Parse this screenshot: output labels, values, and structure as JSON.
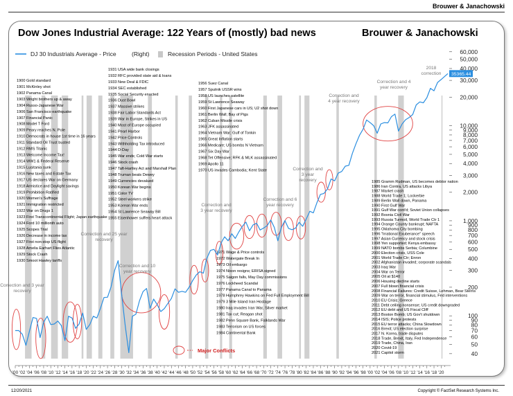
{
  "header": {
    "brand": "Brouwer & Janachowski",
    "title": "Dow Jones Industrial Average: 122 Years of (mostly) bad news",
    "brand2": "Brouwer & Janachowski"
  },
  "footer": {
    "date": "12/20/2021",
    "copyright": "Copyright © FactSet Research Systems Inc."
  },
  "colors": {
    "line": "#2a8ee0",
    "recession": "#c8c8c8",
    "ellipse": "#e04040",
    "label_bg": "#2a8ee0"
  },
  "chart_data": {
    "type": "line",
    "legend": {
      "series": "DJ 30 Industrials Average - Price",
      "axis_note": "(Right)",
      "recession": "Recession Periods - United States"
    },
    "last_value_label": "35365.44",
    "y_scale": "log",
    "y_ticks": [
      40,
      50,
      60,
      70,
      80,
      90,
      100,
      200,
      300,
      400,
      500,
      600,
      700,
      800,
      900,
      1000,
      2000,
      3000,
      4000,
      5000,
      6000,
      7000,
      8000,
      9000,
      10000,
      20000,
      30000,
      40000,
      50000,
      60000
    ],
    "y_tick_labels": [
      "40",
      "50",
      "60",
      "70",
      "80",
      "90",
      "100",
      "200",
      "300",
      "400",
      "500",
      "600",
      "700",
      "800",
      "900",
      "1,000",
      "2,000",
      "3,000",
      "4,000",
      "5,000",
      "6,000",
      "7,000",
      "8,000",
      "9,000",
      "10,000",
      "20,000",
      "30,000",
      "40,000",
      "50,000",
      "60,000"
    ],
    "x_tick_labels": [
      "'00",
      "'02",
      "'04",
      "'06",
      "'08",
      "'10",
      "'12",
      "'14",
      "'16",
      "'18",
      "'20",
      "'22",
      "'24",
      "'26",
      "'28",
      "'30",
      "'32",
      "'34",
      "'36",
      "'38",
      "'40",
      "'42",
      "'44",
      "'46",
      "'48",
      "'50",
      "'52",
      "'54",
      "'56",
      "'58",
      "'60",
      "'62",
      "'64",
      "'66",
      "'68",
      "'70",
      "'72",
      "'74",
      "'76",
      "'78",
      "'80",
      "'82",
      "'84",
      "'86",
      "'88",
      "'90",
      "'92",
      "'94",
      "'96",
      "'98",
      "'00",
      "'02",
      "'04",
      "'06",
      "'08",
      "'10",
      "'12",
      "'14",
      "'16",
      "'18",
      "'20"
    ],
    "x_range": [
      1900,
      2021.9
    ],
    "y_range": [
      30,
      65000
    ],
    "series": [
      {
        "name": "DJ 30 Industrials Average - Price",
        "x": [
          1900,
          1901,
          1902,
          1903,
          1904,
          1905,
          1906,
          1907,
          1908,
          1909,
          1910,
          1911,
          1912,
          1913,
          1914,
          1915,
          1916,
          1917,
          1918,
          1919,
          1920,
          1921,
          1922,
          1923,
          1924,
          1925,
          1926,
          1927,
          1928,
          1929,
          1930,
          1931,
          1932,
          1933,
          1934,
          1935,
          1936,
          1937,
          1938,
          1939,
          1940,
          1941,
          1942,
          1943,
          1944,
          1945,
          1946,
          1947,
          1948,
          1949,
          1950,
          1951,
          1952,
          1953,
          1954,
          1955,
          1956,
          1957,
          1958,
          1959,
          1960,
          1961,
          1962,
          1963,
          1964,
          1965,
          1966,
          1967,
          1968,
          1969,
          1970,
          1971,
          1972,
          1973,
          1974,
          1975,
          1976,
          1977,
          1978,
          1979,
          1980,
          1981,
          1982,
          1983,
          1984,
          1985,
          1986,
          1987,
          1988,
          1989,
          1990,
          1991,
          1992,
          1993,
          1994,
          1995,
          1996,
          1997,
          1998,
          1999,
          2000,
          2001,
          2002,
          2003,
          2004,
          2005,
          2006,
          2007,
          2008,
          2009,
          2010,
          2011,
          2012,
          2013,
          2014,
          2015,
          2016,
          2017,
          2018,
          2019,
          2020,
          2021.9
        ],
        "values": [
          70,
          70,
          64,
          49,
          69,
          96,
          94,
          59,
          86,
          99,
          81,
          82,
          88,
          79,
          55,
          99,
          95,
          74,
          82,
          107,
          72,
          81,
          99,
          95,
          120,
          156,
          157,
          202,
          300,
          381,
          165,
          78,
          41,
          99,
          104,
          144,
          180,
          194,
          120,
          150,
          131,
          111,
          119,
          135,
          152,
          192,
          177,
          181,
          177,
          200,
          235,
          269,
          291,
          281,
          404,
          488,
          500,
          436,
          584,
          679,
          616,
          731,
          652,
          763,
          874,
          969,
          786,
          905,
          943,
          800,
          839,
          890,
          1020,
          851,
          616,
          852,
          1005,
          831,
          805,
          839,
          964,
          875,
          1047,
          1259,
          1212,
          1547,
          1896,
          1939,
          2169,
          2753,
          2634,
          3169,
          3301,
          3754,
          3834,
          5117,
          6448,
          7908,
          9181,
          11497,
          10787,
          10022,
          8342,
          10454,
          10783,
          10718,
          12463,
          13265,
          8776,
          10428,
          11578,
          12218,
          13104,
          16577,
          17823,
          17425,
          19763,
          24719,
          23327,
          28538,
          30606,
          35365
        ]
      }
    ],
    "recessions": [
      [
        1902.75,
        1904.6
      ],
      [
        1907.4,
        1908.45
      ],
      [
        1910.1,
        1912
      ],
      [
        1913.1,
        1914.9
      ],
      [
        1918.7,
        1919.2
      ],
      [
        1920.1,
        1921.6
      ],
      [
        1923.4,
        1924.55
      ],
      [
        1926.8,
        1927.9
      ],
      [
        1929.6,
        1933.2
      ],
      [
        1937.4,
        1938.5
      ],
      [
        1945.1,
        1945.8
      ],
      [
        1948.9,
        1949.8
      ],
      [
        1953.5,
        1954.4
      ],
      [
        1957.7,
        1958.3
      ],
      [
        1960.3,
        1961.1
      ],
      [
        1969.9,
        1970.9
      ],
      [
        1973.9,
        1975.2
      ],
      [
        1980,
        1980.5
      ],
      [
        1981.5,
        1982.9
      ],
      [
        1990.5,
        1991.2
      ],
      [
        2001.2,
        2001.9
      ],
      [
        2007.9,
        2009.5
      ],
      [
        2020.1,
        2020.3
      ]
    ],
    "annotations": [
      {
        "label": "Correction and 3 year recovery",
        "lines": [
          "Correction and 3 year",
          "recovery"
        ]
      },
      {
        "label": "Correction and 25 year recovery",
        "lines": [
          "Correction and 25 year",
          "recovery"
        ]
      },
      {
        "label": "Correction and 10 year recovery",
        "lines": [
          "Correction and 10",
          "year recovery"
        ]
      },
      {
        "label": "Correction and 3 year recovery (1962)",
        "lines": [
          "Correction and",
          "3 year recovery"
        ]
      },
      {
        "label": "Correction and 6 year recovery",
        "lines": [
          "Correction and 6",
          "year recovery"
        ]
      },
      {
        "label": "Correction and 3 year recovery (1987)",
        "lines": [
          "Correction and",
          "3 year",
          "recovery"
        ]
      },
      {
        "label": "Correction and 4 year recovery (2000)",
        "lines": [
          "Correction and",
          "4 year recovery"
        ]
      },
      {
        "label": "Correction and 4 year recovery (2007)",
        "lines": [
          "Correction and 4",
          "year recovery"
        ]
      },
      {
        "label": "2018 correction",
        "lines": [
          "2018",
          "correction"
        ]
      }
    ],
    "major_conflicts_label": "Major Conflicts",
    "events_col1": [
      "1900 Gold standard",
      "1901 McKinley shot",
      "1902 Panama Canal",
      "1903 Wright brothers up & away",
      "1904 Russo-Japanese War",
      "1906 San Francisco earthquake",
      "1907 Financial Panic",
      "1908 Model T Ford",
      "1909 Peary reaches N. Pole",
      "1910 Democrats in house 1st time in 16 years",
      "1911 Standard Oil Trust busted",
      "1912 RMS Titanic",
      "1913 Welcome Income Tax!",
      "1914 WW1 & Federal Reserve",
      "1915 Lusitania sunk",
      "1916 New taxes and Estate Tax",
      "1917 US declares War on Germany",
      "1918 Armistice and Daylight savings",
      "1919 Prohibition Ratified",
      "1920 Women's Suffrage",
      "1921 Immigration restricted",
      "1922 War on Drugs 1",
      "1923 First Transcontinental Flight; Japan earthquake",
      "1924 Ford 10 millionth auto",
      "1925 Scopes Trial",
      "1926 Decrease in income tax",
      "1927 First non-stop US flight",
      "1928 Amelia Earhart Flies Atlantic",
      "1929 Stock Crash",
      "1930 Smoot Hawley tariffs"
    ],
    "events_col2": [
      "1931 USA wide bank closings",
      "1932 RFC provided state aid & loans",
      "1933 New Deal & FDIC",
      "1934 SEC established",
      "1935 Social Security enacted",
      "1936 Dust Bowl",
      "1937 Massive strikes",
      "1938 Fair Labor Standards Act",
      "1939 War in Europe, Strikes in US",
      "1940 Most of Europe occupied",
      "1941 Pearl Harbor",
      "1942 Price Controls",
      "1943 Withholding Tax introduced",
      "1944 D-Day",
      "1945 War ends; Cold War starts",
      "1946 Stock crash",
      "1947 Taft-Hartley Act and Marshall Plan",
      "1948 Truman beats Dewey",
      "1949 Currencies devalued",
      "1950 Korean War begins",
      "1951 Color TV",
      "1952 Steel workers strike",
      "1953 Korean War ends",
      "1954 St Lawrence Seaway Bill",
      "1955 Eisenhower suffers heart attack"
    ],
    "events_col3": [
      "1956 Suez Canal",
      "1957 Sputnik USSR wins",
      "1958 US launches satellite",
      "1959 St Lawrence Seaway",
      "1960 First Japanese cars in US; U2 shot down",
      "1961 Berlin Wall; Bay of Pigs",
      "1962 Cuban Missile crisis",
      "1963 JFK assassinated",
      "1964 Vietnam War; Gulf of Tonkin",
      "1965 Great Inflation starts",
      "1966 Medicare; US bombs N Vietnam",
      "1967 Six Day War",
      "1968 Tet Offensive; RFK & MLK assassinated",
      "1969 Apollo 11",
      "1970 US invades Cambodia; Kent State"
    ],
    "events_col4": [
      "1971 Wage & Price controls",
      "1972 Watergate Break In",
      "1973 Oil embargo",
      "1974 Nixon resigns; ERISA signed",
      "1975 Saigon falls, May Day commissions",
      "1976 Lockheed Scandal",
      "1977 Panama Canal to Panama",
      "1978 Humphrey Hawkins on Fed Full Employment Bill",
      "1979 3 Mile Island Iran Hostage",
      "1980 Iraq invades Iran War, Silver market",
      "1981 Tax cut; Reagan shot",
      "1982 Penn Square Bank, Falklands War",
      "1983 Terrorism on US forces",
      "1984 Continental Bank"
    ],
    "events_col5": [
      "1985 Gramm Rudman, US becomes debtor nation",
      "1986 Iran Contra, US attacks Libya",
      "1987 Market crash",
      "1988 World Trade 1; Lockerbie",
      "1989 Berlin Wall down, Panama",
      "1990 First Gulf War",
      "1991 Gulf War cont'd; Soviet Union collapses",
      "1992 Bosnia Civil War",
      "1993 Russia Turmoil, World Trade Ctr 1",
      "1994 Orange County bankrupt; NAFTA",
      "1995 Oklahoma City bombing",
      "1996 \"Irrational Exuberance\" speech",
      "1997 Asian Currency and stock crisis",
      "1998 Yen supported; Kenya embassy",
      "1999 NATO bombs Serbia; Columbine",
      "2000 Election crisis, USS Cole",
      "2001 World Trade Ctr; Enron",
      "2002 Afghanistan invaded; corporate scandals",
      "2003 Iraq War",
      "2004 War on Terror",
      "2005 Oil at $140",
      "2006 Housing decline starts",
      "2007 Full blown financial crisis",
      "2008 Financial Failures: Credit Suisse, Lehman, Bear Sterns",
      "2009 War on terror, financial stimulus, Fed interventions",
      "2010 EU Crisis; Greece",
      "2011 Debt ceiling nonsense; US credit downgraded",
      "2012 EU debt and US Fiscal Cliff",
      "2013 Boston Bomb; US Gov't shutdown",
      "2014 ISIS; Police protests",
      "2015 EU terror attacks; China Slowdown",
      "2016 Brexit; US election surprise",
      "2017 N. Korea, trade disputes",
      "2018 Trade, Brexit, Italy, Fed Independence",
      "2019 Trade, China, Iran",
      "2020 Covid-19",
      "2021 Capitol storm"
    ]
  }
}
